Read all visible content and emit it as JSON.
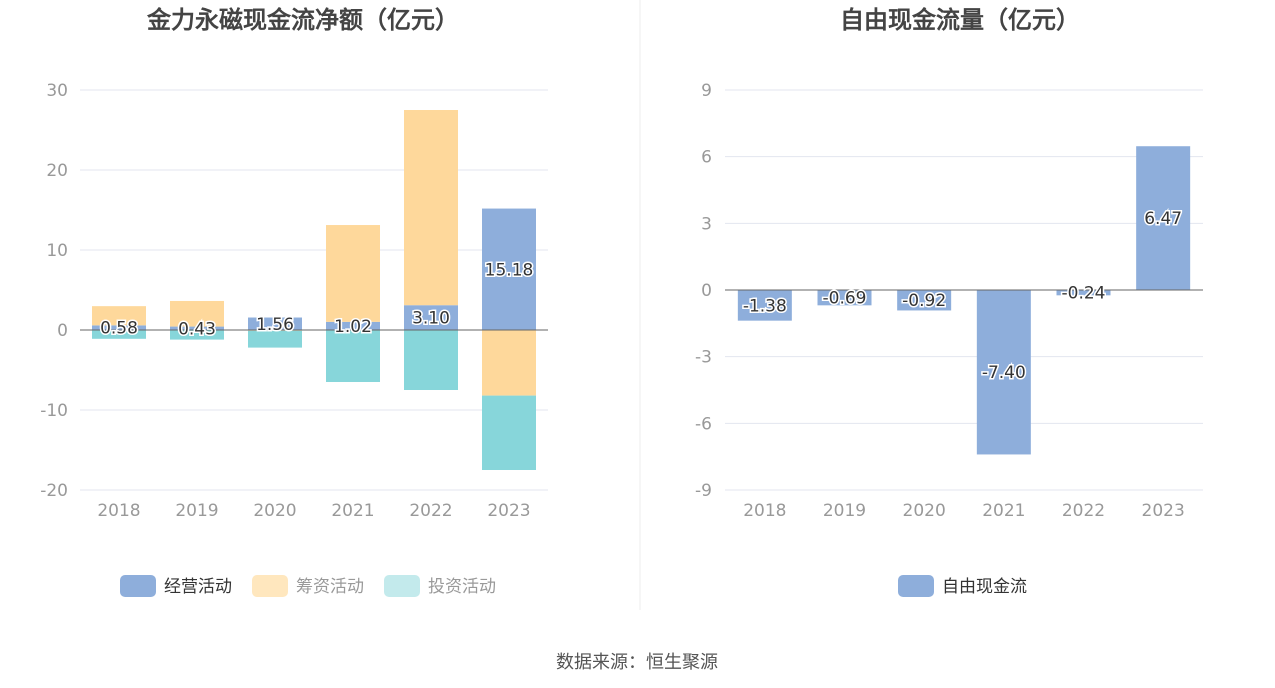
{
  "charts": [
    {
      "title": "金力永磁现金流净额（亿元）",
      "chart_data": {
        "type": "bar",
        "stacked": true,
        "categories": [
          "2018",
          "2019",
          "2020",
          "2021",
          "2022",
          "2023"
        ],
        "series": [
          {
            "name": "经营活动",
            "color": "#8eaedb",
            "values": [
              0.58,
              0.43,
              1.56,
              1.02,
              3.1,
              15.18
            ]
          },
          {
            "name": "筹资活动",
            "color": "#fed89b",
            "values": [
              2.4,
              3.2,
              -0.1,
              12.1,
              24.4,
              -8.2
            ]
          },
          {
            "name": "投资活动",
            "color": "#87d6da",
            "values": [
              -1.1,
              -1.2,
              -2.1,
              -6.5,
              -7.5,
              -9.3
            ]
          }
        ],
        "data_labels": [
          "0.58",
          "0.43",
          "1.56",
          "1.02",
          "3.10",
          "15.18"
        ],
        "ylim": [
          -20,
          30
        ],
        "yticks": [
          30,
          20,
          10,
          0,
          -10,
          -20
        ],
        "grid": true,
        "legend": "bottom"
      },
      "legend_colors": [
        "#8eaedb",
        "#ffe7be",
        "#c3eaec"
      ],
      "legend_text_colors": [
        "#333333",
        "#999999",
        "#999999"
      ]
    },
    {
      "title": "自由现金流量（亿元）",
      "chart_data": {
        "type": "bar",
        "categories": [
          "2018",
          "2019",
          "2020",
          "2021",
          "2022",
          "2023"
        ],
        "series": [
          {
            "name": "自由现金流",
            "color": "#8eaedb",
            "values": [
              -1.38,
              -0.69,
              -0.92,
              -7.4,
              -0.24,
              6.47
            ]
          }
        ],
        "data_labels": [
          "-1.38",
          "-0.69",
          "-0.92",
          "-7.40",
          "-0.24",
          "6.47"
        ],
        "ylim": [
          -9,
          9
        ],
        "yticks": [
          9,
          6,
          3,
          0,
          -3,
          -6,
          -9
        ],
        "grid": true,
        "legend": "bottom"
      },
      "legend_colors": [
        "#8eaedb"
      ],
      "legend_text_colors": [
        "#333333"
      ]
    }
  ],
  "source": "数据来源：恒生聚源"
}
